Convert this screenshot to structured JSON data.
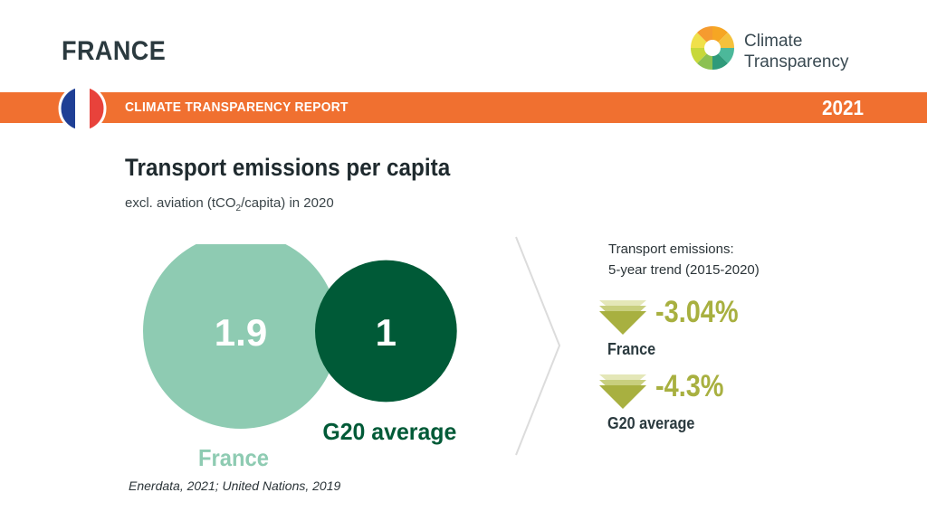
{
  "header": {
    "country": "FRANCE",
    "logo_line1": "Climate",
    "logo_line2": "Transparency",
    "banner_title": "CLIMATE TRANSPARENCY REPORT",
    "year": "2021",
    "flag_icon": "france-flag-icon",
    "colors": {
      "banner": "#f07030",
      "flag_blue": "#1f3f95",
      "flag_red": "#e8423b"
    }
  },
  "chart": {
    "title": "Transport emissions per capita",
    "subtitle_pre": "excl. aviation (tCO",
    "subtitle_sub": "2",
    "subtitle_post": "/capita) in 2020",
    "source": "Enerdata, 2021; United Nations, 2019"
  },
  "chart_data": {
    "type": "bubble",
    "categories": [
      "France",
      "G20 average"
    ],
    "values": [
      1.9,
      1
    ],
    "value_labels": [
      "1.9",
      "1"
    ],
    "colors": [
      "#8ecbb2",
      "#005a37"
    ],
    "label_colors": [
      "#8ecbb2",
      "#005a37"
    ]
  },
  "trend": {
    "heading_line1": "Transport emissions:",
    "heading_line2": "5-year trend (2015-2020)",
    "icon": "down-triangle-icon",
    "color": "#a8b040",
    "items": [
      {
        "value": "-3.04%",
        "label": "France"
      },
      {
        "value": "-4.3%",
        "label": "G20 average"
      }
    ]
  }
}
